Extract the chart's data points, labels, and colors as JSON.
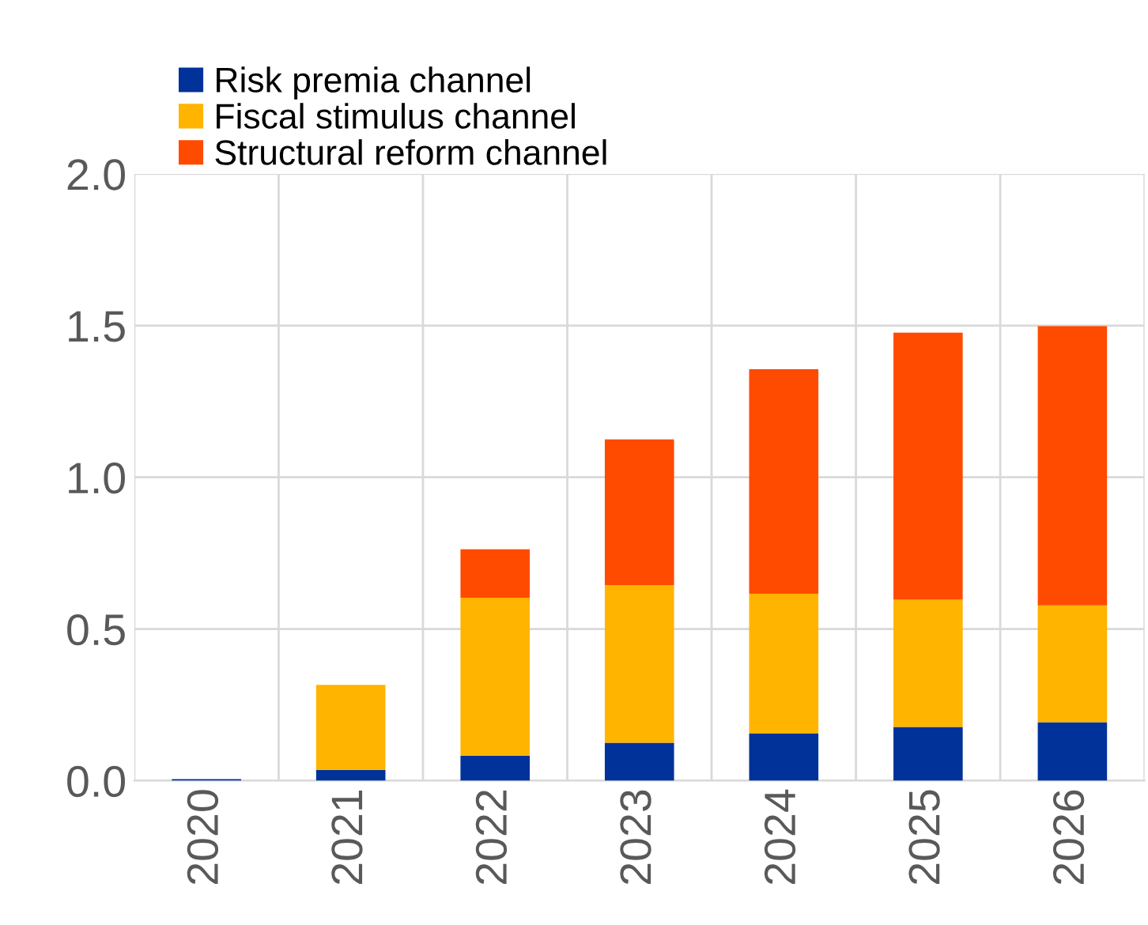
{
  "chart_data": {
    "type": "bar",
    "stacked": true,
    "categories": [
      "2020",
      "2021",
      "2022",
      "2023",
      "2024",
      "2025",
      "2026"
    ],
    "series": [
      {
        "name": "Risk premia channel",
        "color": "#003299",
        "values": [
          0.005,
          0.036,
          0.083,
          0.125,
          0.156,
          0.177,
          0.193
        ]
      },
      {
        "name": "Fiscal stimulus channel",
        "color": "#ffb400",
        "values": [
          0,
          0.28,
          0.52,
          0.52,
          0.46,
          0.42,
          0.385
        ]
      },
      {
        "name": "Structural reform channel",
        "color": "#ff4b00",
        "values": [
          0,
          0,
          0.16,
          0.48,
          0.74,
          0.88,
          0.92
        ]
      }
    ],
    "ylim": [
      0,
      2.0
    ],
    "yticks": [
      {
        "value": 0,
        "label": "0.0"
      },
      {
        "value": 0.5,
        "label": "0.5"
      },
      {
        "value": 1.0,
        "label": "1.0"
      },
      {
        "value": 1.5,
        "label": "1.5"
      },
      {
        "value": 2.0,
        "label": "2.0"
      }
    ],
    "grid": true,
    "legend": "top left"
  }
}
